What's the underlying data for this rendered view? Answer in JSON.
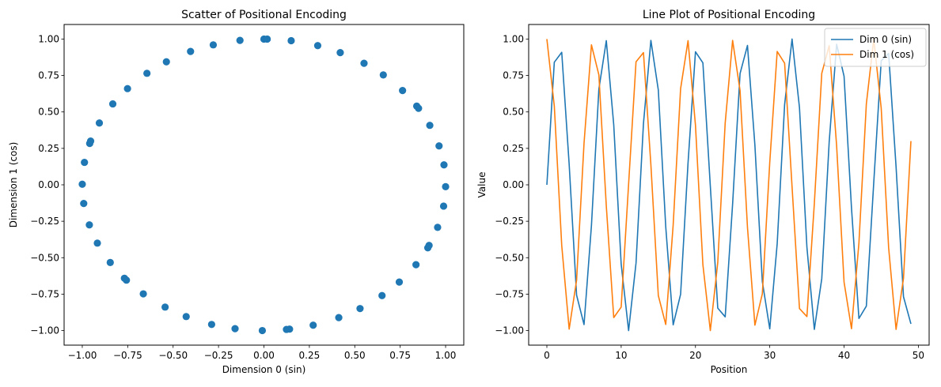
{
  "chart_data": [
    {
      "type": "scatter",
      "title": "Scatter of Positional Encoding",
      "xlabel": "Dimension 0 (sin)",
      "ylabel": "Dimension 1 (cos)",
      "xlim": [
        -1.1,
        1.1
      ],
      "ylim": [
        -1.1,
        1.1
      ],
      "xticks": [
        -1.0,
        -0.75,
        -0.5,
        -0.25,
        0.0,
        0.25,
        0.5,
        0.75,
        1.0
      ],
      "yticks": [
        -1.0,
        -0.75,
        -0.5,
        -0.25,
        0.0,
        0.25,
        0.5,
        0.75,
        1.0
      ],
      "xtick_labels": [
        "−1.00",
        "−0.75",
        "−0.50",
        "−0.25",
        "0.00",
        "0.25",
        "0.50",
        "0.75",
        "1.00"
      ],
      "ytick_labels": [
        "−1.00",
        "−0.75",
        "−0.50",
        "−0.25",
        "0.00",
        "0.25",
        "0.50",
        "0.75",
        "1.00"
      ],
      "grid": false,
      "color": "#1f77b4",
      "series": [
        {
          "x": [
            0.0,
            0.841,
            0.909,
            0.141,
            -0.757,
            -0.959,
            -0.279,
            0.657,
            0.989,
            0.412,
            -0.544,
            -1.0,
            -0.537,
            0.42,
            0.991,
            0.65,
            -0.288,
            -0.961,
            -0.751,
            0.15,
            0.913,
            0.837,
            -0.009,
            -0.846,
            -0.906,
            -0.132,
            0.763,
            0.956,
            0.271,
            -0.664,
            -0.988,
            -0.404,
            0.551,
            1.0,
            0.529,
            -0.428,
            -0.992,
            -0.644,
            0.296,
            0.964,
            0.745,
            -0.159,
            -0.917,
            -0.832,
            0.018,
            0.851,
            0.902,
            0.124,
            -0.768,
            -0.954
          ],
          "y": [
            1.0,
            0.54,
            -0.416,
            -0.99,
            -0.654,
            0.284,
            0.96,
            0.754,
            -0.146,
            -0.911,
            -0.839,
            0.004,
            0.844,
            0.907,
            0.137,
            -0.76,
            -0.958,
            -0.275,
            0.66,
            0.989,
            0.408,
            -0.548,
            -1.0,
            -0.533,
            0.424,
            0.991,
            0.647,
            -0.292,
            -0.963,
            -0.748,
            0.154,
            0.915,
            0.834,
            -0.013,
            -0.849,
            -0.904,
            -0.128,
            0.765,
            0.955,
            0.267,
            -0.667,
            -0.987,
            -0.4,
            0.555,
            1.0,
            0.525,
            -0.432,
            -0.992,
            -0.641,
            0.3
          ]
        }
      ]
    },
    {
      "type": "line",
      "title": "Line Plot of Positional Encoding",
      "xlabel": "Position",
      "ylabel": "Value",
      "xlim": [
        -2.45,
        51.45
      ],
      "ylim": [
        -1.1,
        1.1
      ],
      "xticks": [
        0,
        10,
        20,
        30,
        40,
        50
      ],
      "yticks": [
        -1.0,
        -0.75,
        -0.5,
        -0.25,
        0.0,
        0.25,
        0.5,
        0.75,
        1.0
      ],
      "xtick_labels": [
        "0",
        "10",
        "20",
        "30",
        "40",
        "50"
      ],
      "ytick_labels": [
        "−1.00",
        "−0.75",
        "−0.50",
        "−0.25",
        "0.00",
        "0.25",
        "0.50",
        "0.75",
        "1.00"
      ],
      "grid": false,
      "legend": "top-right",
      "x": [
        0,
        1,
        2,
        3,
        4,
        5,
        6,
        7,
        8,
        9,
        10,
        11,
        12,
        13,
        14,
        15,
        16,
        17,
        18,
        19,
        20,
        21,
        22,
        23,
        24,
        25,
        26,
        27,
        28,
        29,
        30,
        31,
        32,
        33,
        34,
        35,
        36,
        37,
        38,
        39,
        40,
        41,
        42,
        43,
        44,
        45,
        46,
        47,
        48,
        49
      ],
      "series": [
        {
          "name": "Dim 0 (sin)",
          "color": "#1f77b4",
          "values": [
            0.0,
            0.841,
            0.909,
            0.141,
            -0.757,
            -0.959,
            -0.279,
            0.657,
            0.989,
            0.412,
            -0.544,
            -1.0,
            -0.537,
            0.42,
            0.991,
            0.65,
            -0.288,
            -0.961,
            -0.751,
            0.15,
            0.913,
            0.837,
            -0.009,
            -0.846,
            -0.906,
            -0.132,
            0.763,
            0.956,
            0.271,
            -0.664,
            -0.988,
            -0.404,
            0.551,
            1.0,
            0.529,
            -0.428,
            -0.992,
            -0.644,
            0.296,
            0.964,
            0.745,
            -0.159,
            -0.917,
            -0.832,
            0.018,
            0.851,
            0.902,
            0.124,
            -0.768,
            -0.954
          ]
        },
        {
          "name": "Dim 1 (cos)",
          "color": "#ff7f0e",
          "values": [
            1.0,
            0.54,
            -0.416,
            -0.99,
            -0.654,
            0.284,
            0.96,
            0.754,
            -0.146,
            -0.911,
            -0.839,
            0.004,
            0.844,
            0.907,
            0.137,
            -0.76,
            -0.958,
            -0.275,
            0.66,
            0.989,
            0.408,
            -0.548,
            -1.0,
            -0.533,
            0.424,
            0.991,
            0.647,
            -0.292,
            -0.963,
            -0.748,
            0.154,
            0.915,
            0.834,
            -0.013,
            -0.849,
            -0.904,
            -0.128,
            0.765,
            0.955,
            0.267,
            -0.667,
            -0.987,
            -0.4,
            0.555,
            1.0,
            0.525,
            -0.432,
            -0.992,
            -0.641,
            0.3
          ]
        }
      ]
    }
  ]
}
